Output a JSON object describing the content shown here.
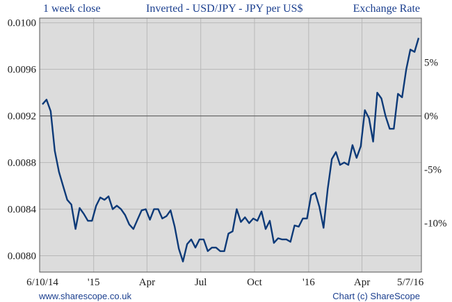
{
  "header": {
    "left": "1 week close",
    "center": "Inverted - USD/JPY - JPY per US$",
    "right": "Exchange Rate"
  },
  "footer": {
    "left": "www.sharescope.co.uk",
    "right": "Chart (c) ShareScope"
  },
  "colors": {
    "plot_background": "#dcdcdc",
    "line": "#0d3a78",
    "grid": "#b8b8b8",
    "baseline": "#555555",
    "text_blue": "#1b3f8f"
  },
  "chart_data": {
    "type": "line",
    "title": "1 week close",
    "subtitle": "Inverted - USD/JPY - JPY per US$",
    "ylabel": "Exchange Rate",
    "ylim": [
      0.00786,
      0.01004
    ],
    "y_ticks": [
      "0.0080",
      "0.0084",
      "0.0088",
      "0.0092",
      "0.0096",
      "0.0100"
    ],
    "y_tick_values": [
      0.008,
      0.0084,
      0.0088,
      0.0092,
      0.0096,
      0.01
    ],
    "right_axis_ticks": [
      "5%",
      "0%",
      "-5%",
      "-10%"
    ],
    "right_axis_values": [
      5,
      0,
      -5,
      -10
    ],
    "baseline_value": 0.0092,
    "x_ticks": [
      "6/10/14",
      "'15",
      "Apr",
      "Jul",
      "Oct",
      "'16",
      "Apr",
      "5/7/16"
    ],
    "x_tick_weeks": [
      0,
      12.4,
      25.3,
      38.3,
      51.3,
      64.4,
      77.3,
      89.0
    ],
    "grid": true,
    "series": [
      {
        "values": [
          0.0093,
          0.00934,
          0.00924,
          0.0089,
          0.00872,
          0.0086,
          0.00848,
          0.00844,
          0.00823,
          0.00841,
          0.00836,
          0.0083,
          0.0083,
          0.00843,
          0.0085,
          0.00848,
          0.00851,
          0.0084,
          0.00843,
          0.0084,
          0.00835,
          0.00827,
          0.00823,
          0.00831,
          0.00839,
          0.0084,
          0.00831,
          0.0084,
          0.0084,
          0.00832,
          0.00834,
          0.00839,
          0.00825,
          0.00806,
          0.00795,
          0.0081,
          0.00814,
          0.00807,
          0.00814,
          0.00814,
          0.00804,
          0.00807,
          0.00807,
          0.00804,
          0.00804,
          0.00819,
          0.00821,
          0.0084,
          0.00829,
          0.00833,
          0.00828,
          0.00832,
          0.0083,
          0.00838,
          0.00823,
          0.0083,
          0.00811,
          0.00815,
          0.00814,
          0.00814,
          0.00812,
          0.00826,
          0.00825,
          0.00832,
          0.00832,
          0.00852,
          0.00854,
          0.00842,
          0.00824,
          0.00857,
          0.00883,
          0.00889,
          0.00878,
          0.0088,
          0.00878,
          0.00895,
          0.00884,
          0.00894,
          0.00925,
          0.00918,
          0.00898,
          0.0094,
          0.00935,
          0.0092,
          0.00909,
          0.00909,
          0.00939,
          0.00936,
          0.0096,
          0.00977,
          0.00975,
          0.00987
        ]
      }
    ]
  }
}
